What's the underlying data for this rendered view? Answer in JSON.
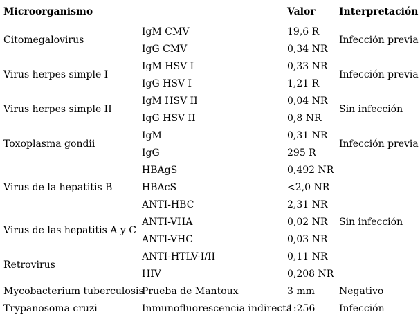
{
  "table": {
    "headers": {
      "microorganism": "Microorganismo",
      "value": "Valor",
      "interpretation": "Interpretación"
    },
    "groups": [
      {
        "name": "Citomegalovirus",
        "interpretation": "Infección previa",
        "tests": [
          {
            "test": "IgM CMV",
            "value": "19,6 R"
          },
          {
            "test": "IgG CMV",
            "value": "0,34 NR"
          }
        ]
      },
      {
        "name": "Virus herpes simple I",
        "interpretation": "Infección previa",
        "tests": [
          {
            "test": "IgM HSV I",
            "value": "0,33 NR"
          },
          {
            "test": "IgG HSV I",
            "value": "1,21 R"
          }
        ]
      },
      {
        "name": "Virus herpes simple II",
        "interpretation": "Sin infección",
        "tests": [
          {
            "test": "IgM HSV II",
            "value": "0,04 NR"
          },
          {
            "test": "IgG HSV II",
            "value": "0,8 NR"
          }
        ]
      },
      {
        "name": "Toxoplasma gondii",
        "interpretation": "Infección previa",
        "tests": [
          {
            "test": "IgM",
            "value": "0,31 NR"
          },
          {
            "test": "IgG",
            "value": "295 R"
          }
        ]
      },
      {
        "name": "Virus de la hepatitis B",
        "interpretation": "Sin infección",
        "tests": [
          {
            "test": "HBAgS",
            "value": "0,492 NR"
          },
          {
            "test": "HBAcS",
            "value": "<2,0 NR"
          },
          {
            "test": "ANTI-HBC",
            "value": "2,31 NR"
          }
        ]
      },
      {
        "name": "Virus de las hepatitis A y C",
        "tests": [
          {
            "test": "ANTI-VHA",
            "value": "0,02 NR"
          },
          {
            "test": "ANTI-VHC",
            "value": "0,03 NR"
          }
        ]
      },
      {
        "name": "Retrovirus",
        "tests": [
          {
            "test": "ANTI-HTLV-I/II",
            "value": "0,11 NR"
          },
          {
            "test": "HIV",
            "value": "0,208 NR"
          }
        ]
      },
      {
        "name": "Mycobacterium tuberculosis",
        "interpretation": "Negativo",
        "tests": [
          {
            "test": "Prueba de Mantoux",
            "value": "3 mm"
          }
        ]
      },
      {
        "name": "Trypanosoma cruzi",
        "interpretation": "Infección",
        "tests": [
          {
            "test": "Inmunofluorescencia indirecta",
            "value": "1:256"
          }
        ]
      }
    ]
  }
}
